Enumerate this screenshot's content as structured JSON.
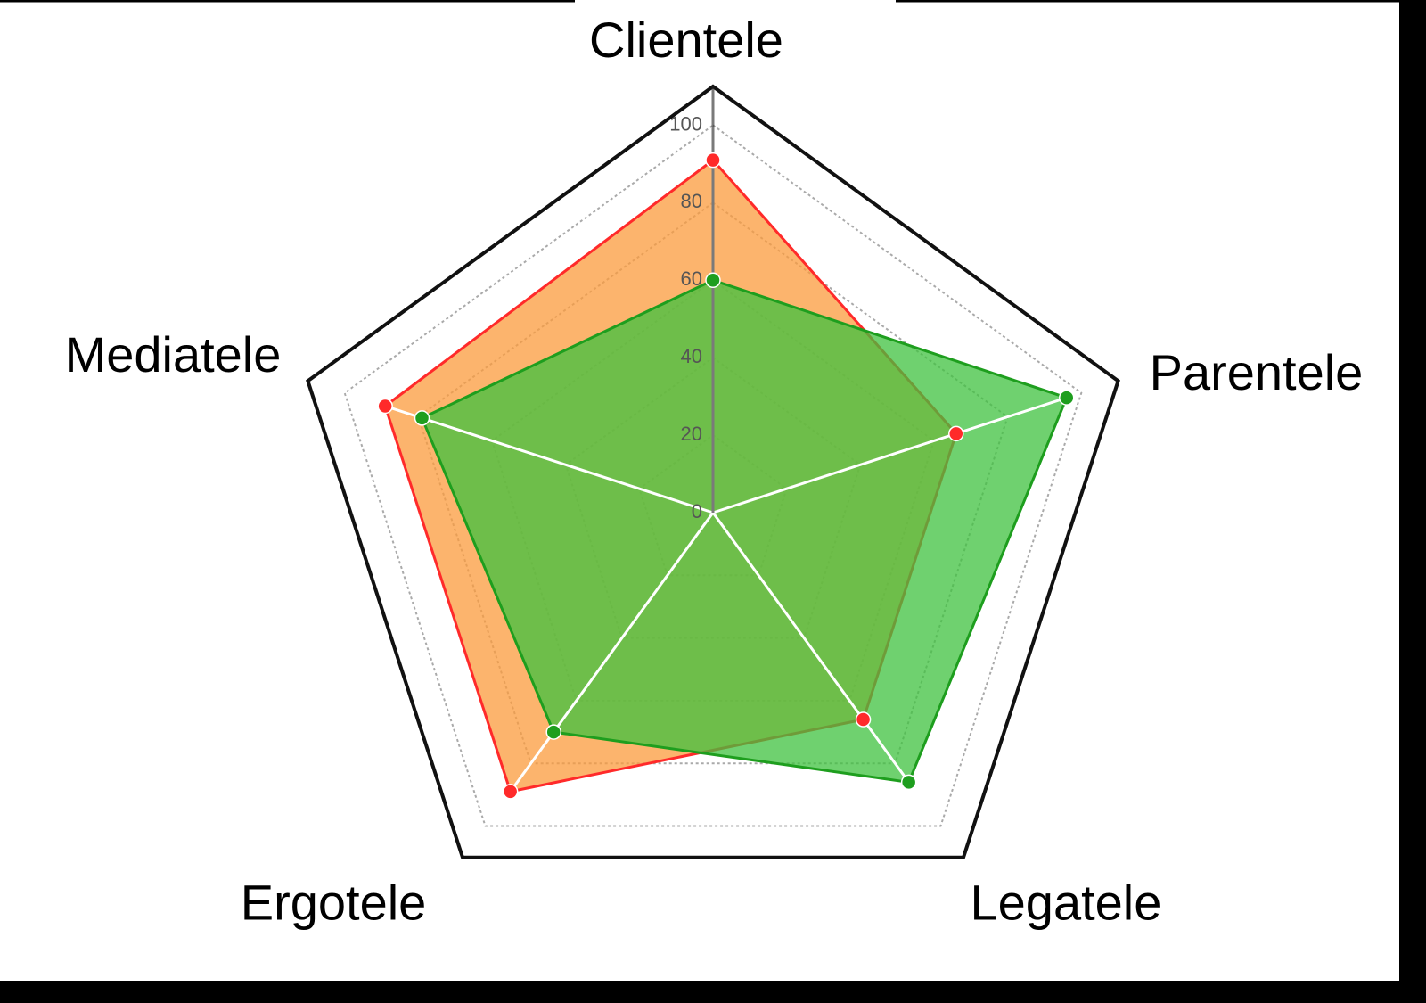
{
  "chart_data": {
    "type": "radar",
    "categories": [
      "Clientele",
      "Parentele",
      "Legatele",
      "Ergotele",
      "Mediatele"
    ],
    "series": [
      {
        "color": "#ff2a2a",
        "fill": "#fb9b3c",
        "values": [
          91,
          66,
          66,
          89,
          89
        ]
      },
      {
        "color": "#1e9e1e",
        "fill": "#3fc23f",
        "values": [
          60,
          96,
          86,
          70,
          79
        ]
      }
    ],
    "ylim": [
      0,
      110
    ],
    "yticks": [
      0,
      20,
      40,
      60,
      80,
      100
    ],
    "grid": true
  }
}
